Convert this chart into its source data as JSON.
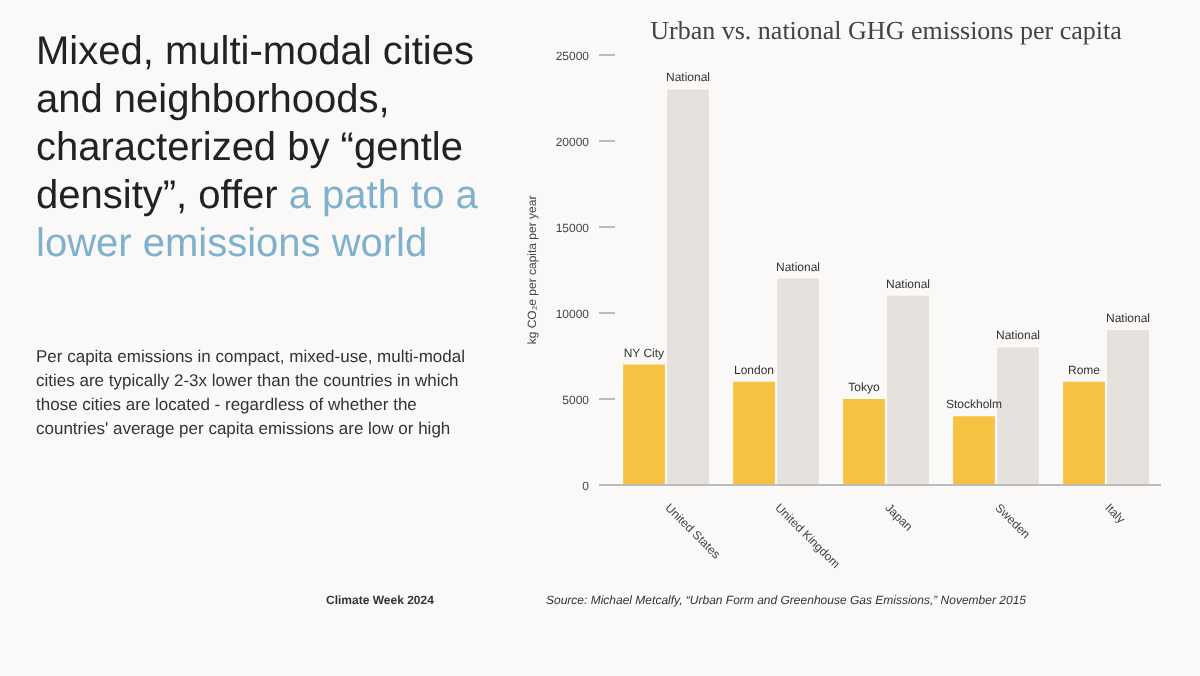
{
  "chart_data": {
    "type": "bar",
    "title": "Urban vs. national GHG emissions per capita",
    "ylabel": "kg CO₂e per capita per year",
    "categories": [
      "United States",
      "United Kingdom",
      "Japan",
      "Sweden",
      "Italy"
    ],
    "series": [
      {
        "color": "#f5c242",
        "values": [
          7000,
          6000,
          5000,
          4000,
          6000
        ]
      },
      {
        "color": "#e5e1dd",
        "values": [
          23000,
          12000,
          11000,
          8000,
          9000
        ]
      }
    ],
    "ylim": [
      0,
      25000
    ],
    "yticks": [
      0,
      5000,
      10000,
      15000,
      20000,
      25000
    ],
    "grid": false,
    "annotations": [
      "Mixed, multi-modal cities and neighborhoods, characterized by “gentle density”, offer",
      "a path to a lower emissions world",
      "Per capita emissions in compact, mixed-use, multi-modal cities are typically 2-3x lower than the countries in which those cities are located - regardless of whether the countries' average per capita emissions are low or high",
      "Climate Week 2024",
      "Source: Michael Metcalfy, “Urban Form and Greenhouse Gas Emissions,” November 2015",
      {
        "text": "NY City",
        "x": "United States",
        "y": 7000
      },
      {
        "text": "National",
        "x": "United States",
        "y": 23000
      },
      {
        "text": "London",
        "x": "United Kingdom",
        "y": 6000
      },
      {
        "text": "National",
        "x": "United Kingdom",
        "y": 12000
      },
      {
        "text": "Tokyo",
        "x": "Japan",
        "y": 5000
      },
      {
        "text": "National",
        "x": "Japan",
        "y": 11000
      },
      {
        "text": "Stockholm",
        "x": "Sweden",
        "y": 4000
      },
      {
        "text": "National",
        "x": "Sweden",
        "y": 8000
      },
      {
        "text": "Rome",
        "x": "Italy",
        "y": 6000
      },
      {
        "text": "National",
        "x": "Italy",
        "y": 9000
      }
    ]
  }
}
